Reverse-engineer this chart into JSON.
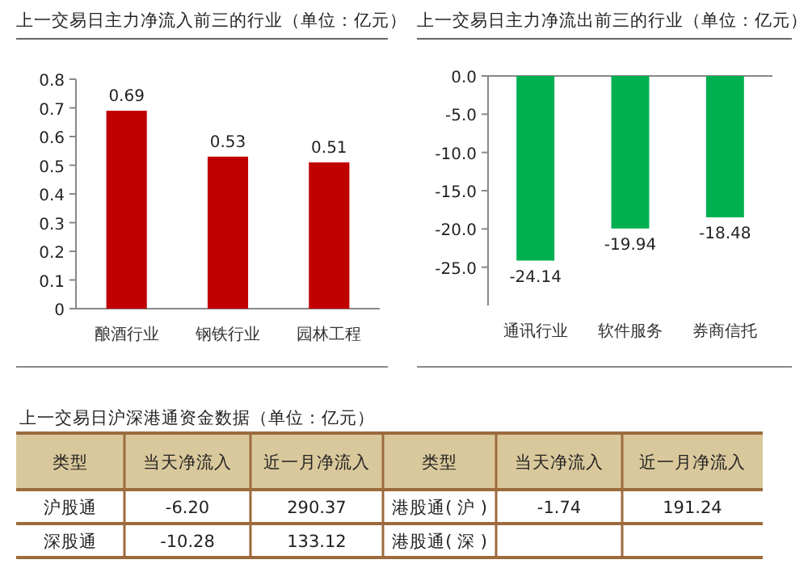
{
  "chart_data": [
    {
      "type": "bar",
      "title": "上一交易日主力净流入前三的行业（单位：亿元）",
      "categories": [
        "酿酒行业",
        "钢铁行业",
        "园林工程"
      ],
      "values": [
        0.69,
        0.53,
        0.51
      ],
      "color": "#c00000",
      "ylim": [
        0,
        0.8
      ],
      "yticks": [
        0,
        0.1,
        0.2,
        0.3,
        0.4,
        0.5,
        0.6,
        0.7,
        0.8
      ],
      "data_labels": true,
      "grid": false
    },
    {
      "type": "bar",
      "title": "上一交易日主力净流出前三的行业（单位：亿元）",
      "categories": [
        "通讯行业",
        "软件服务",
        "券商信托"
      ],
      "values": [
        -24.14,
        -19.94,
        -18.48
      ],
      "color": "#00b050",
      "ylim": [
        -30,
        0
      ],
      "yticks": [
        {
          "value": 0,
          "label": "0.0"
        },
        {
          "value": -5,
          "label": "-5.0"
        },
        {
          "value": -10,
          "label": "-10.0"
        },
        {
          "value": -15,
          "label": "-15.0"
        },
        {
          "value": -20,
          "label": "-20.0"
        },
        {
          "value": -25,
          "label": "-25.0"
        }
      ],
      "data_labels": true,
      "grid": false
    },
    {
      "type": "other",
      "title": "上一交易日沪深港通资金数据（单位：亿元）",
      "categories": [
        "类型",
        "当天净流入",
        "近一月净流入",
        "类型",
        "当天净流入",
        "近一月净流入"
      ],
      "annotations": [
        "沪股通",
        "-6.20",
        "290.37",
        "港股通( 沪 )",
        "-1.74",
        "191.24",
        "深股通",
        "-10.28",
        "133.12",
        "港股通( 深 )"
      ]
    }
  ]
}
